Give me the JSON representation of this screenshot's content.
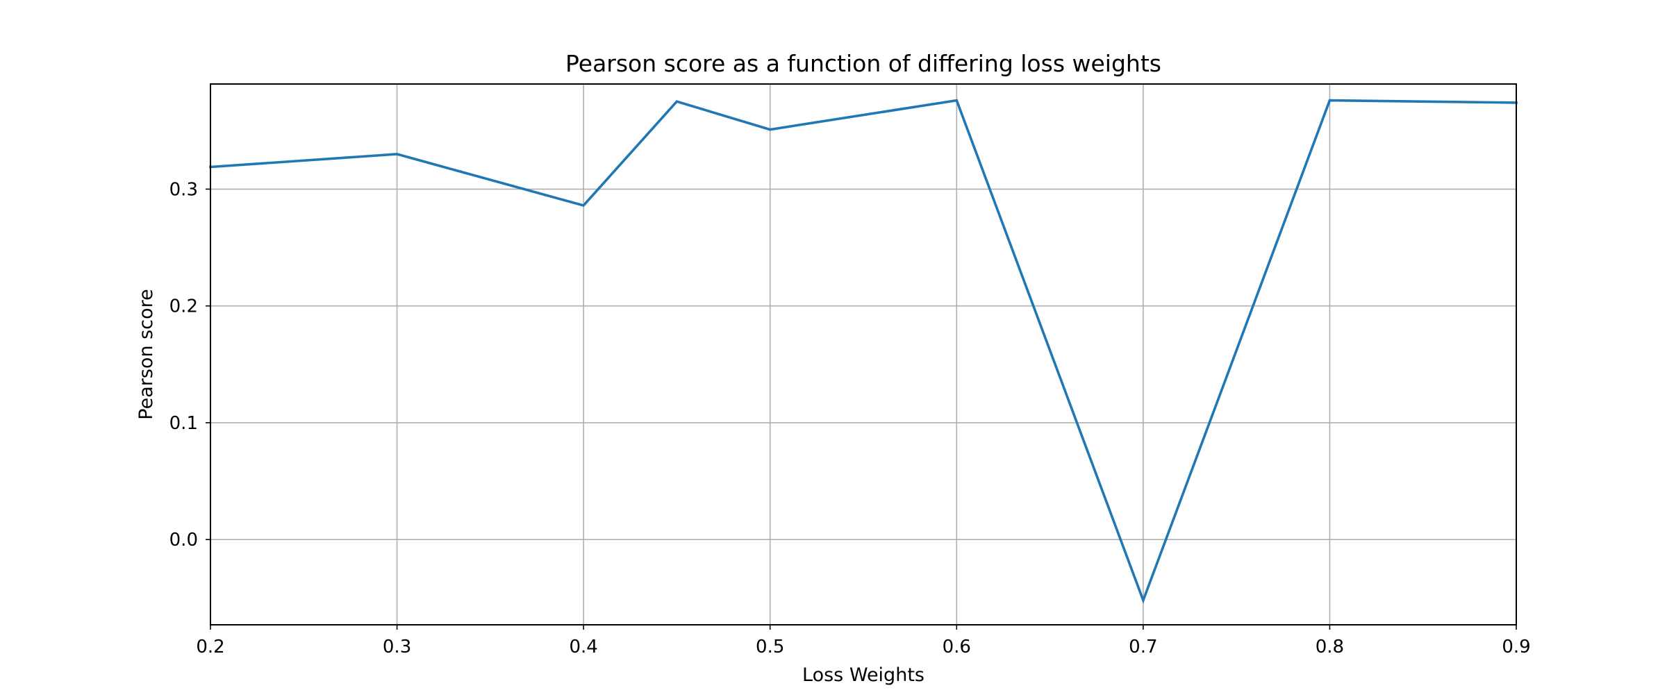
{
  "chart_data": {
    "type": "line",
    "title": "Pearson score as a function of differing loss weights",
    "xlabel": "Loss Weights",
    "ylabel": "Pearson score",
    "xlim": [
      0.2,
      0.9
    ],
    "ylim": [
      -0.073,
      0.39
    ],
    "xticks": [
      0.2,
      0.3,
      0.4,
      0.5,
      0.6,
      0.7,
      0.8,
      0.9
    ],
    "xtick_labels": [
      "0.2",
      "0.3",
      "0.4",
      "0.5",
      "0.6",
      "0.7",
      "0.8",
      "0.9"
    ],
    "yticks": [
      0.0,
      0.1,
      0.2,
      0.3
    ],
    "ytick_labels": [
      "0.0",
      "0.1",
      "0.2",
      "0.3"
    ],
    "grid": true,
    "series": [
      {
        "color": "#1f77b4",
        "x": [
          0.2,
          0.3,
          0.4,
          0.45,
          0.5,
          0.6,
          0.7,
          0.8,
          0.9
        ],
        "y": [
          0.319,
          0.33,
          0.286,
          0.375,
          0.351,
          0.376,
          -0.052,
          0.376,
          0.374
        ]
      }
    ]
  }
}
